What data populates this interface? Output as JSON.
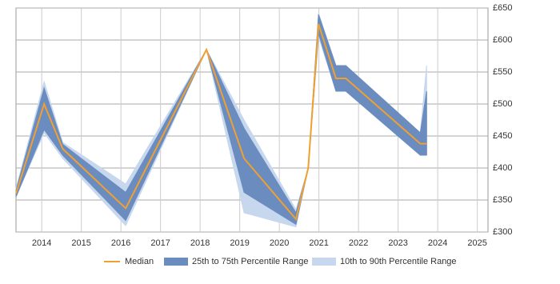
{
  "chart_data": {
    "type": "line",
    "x": [
      2013.35,
      2014.06,
      2014.53,
      2016.12,
      2018.16,
      2019.11,
      2020.42,
      2020.73,
      2020.99,
      2021.43,
      2021.68,
      2023.56,
      2023.72
    ],
    "xlim": [
      2013.35,
      2025.27
    ],
    "xticks": [
      2014,
      2015,
      2016,
      2017,
      2018,
      2019,
      2020,
      2021,
      2022,
      2023,
      2024,
      2025
    ],
    "ylim": [
      300,
      650
    ],
    "yticks": [
      {
        "value": 300,
        "label": "£300"
      },
      {
        "value": 350,
        "label": "£350"
      },
      {
        "value": 400,
        "label": "£400"
      },
      {
        "value": 450,
        "label": "£450"
      },
      {
        "value": 500,
        "label": "£500"
      },
      {
        "value": 550,
        "label": "£550"
      },
      {
        "value": 600,
        "label": "£600"
      },
      {
        "value": 650,
        "label": "£650"
      }
    ],
    "grid": true,
    "legend": "bottom",
    "series": [
      {
        "name": "10th to 90th Percentile Range",
        "color": "#c6d7ee",
        "low": [
          355,
          455,
          415,
          310,
          585,
          330,
          308,
          400,
          605,
          520,
          520,
          420,
          420
        ],
        "high": [
          368,
          535,
          440,
          375,
          585,
          475,
          335,
          400,
          642,
          560,
          560,
          455,
          560
        ]
      },
      {
        "name": "25th to 75th Percentile Range",
        "color": "#6a8cbf",
        "low": [
          355,
          460,
          420,
          318,
          585,
          362,
          312,
          400,
          610,
          520,
          520,
          420,
          420
        ],
        "high": [
          365,
          525,
          437,
          362,
          585,
          462,
          330,
          400,
          640,
          560,
          560,
          455,
          520
        ]
      },
      {
        "name": "Median",
        "color": "#f0a030",
        "values": [
          360,
          500,
          430,
          337,
          585,
          415,
          320,
          400,
          625,
          540,
          540,
          438,
          438
        ]
      }
    ]
  }
}
